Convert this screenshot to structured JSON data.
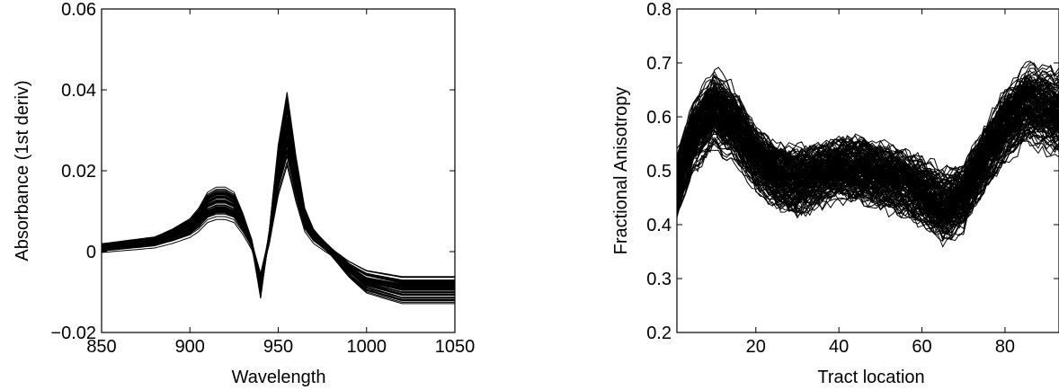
{
  "chart_data": [
    {
      "type": "line",
      "description_of_series": "many overlaid derivative absorbance spectra",
      "xlabel": "Wavelength",
      "ylabel": "Absorbance (1st deriv)",
      "xlim": [
        850,
        1050
      ],
      "ylim": [
        -0.02,
        0.06
      ],
      "xticks": [
        850,
        900,
        950,
        1000,
        1050
      ],
      "xtick_labels": [
        "850",
        "900",
        "950",
        "1000",
        "1050"
      ],
      "yticks": [
        -0.02,
        0,
        0.02,
        0.04,
        0.06
      ],
      "ytick_labels": [
        "−0.02",
        "0",
        "0.02",
        "0.04",
        "0.06"
      ],
      "grid": false,
      "series_count": 60,
      "x": [
        850,
        860,
        870,
        880,
        890,
        900,
        905,
        910,
        915,
        920,
        925,
        930,
        935,
        940,
        945,
        950,
        955,
        960,
        965,
        970,
        980,
        990,
        1000,
        1010,
        1020,
        1030,
        1040,
        1050
      ],
      "mean_curve": [
        0.001,
        0.0015,
        0.002,
        0.0025,
        0.004,
        0.006,
        0.008,
        0.011,
        0.012,
        0.012,
        0.011,
        0.007,
        0.002,
        -0.008,
        0.004,
        0.02,
        0.03,
        0.018,
        0.008,
        0.004,
        0.0,
        -0.004,
        -0.007,
        -0.008,
        -0.009,
        -0.009,
        -0.009,
        -0.009
      ]
    },
    {
      "type": "line",
      "description_of_series": "many overlaid fractional anisotropy tract profiles",
      "xlabel": "Tract location",
      "ylabel": "Fractional Anisotropy",
      "xlim": [
        1,
        93
      ],
      "ylim": [
        0.2,
        0.8
      ],
      "xticks": [
        20,
        40,
        60,
        80
      ],
      "xtick_labels": [
        "20",
        "40",
        "60",
        "80"
      ],
      "yticks": [
        0.2,
        0.3,
        0.4,
        0.5,
        0.6,
        0.7,
        0.8
      ],
      "ytick_labels": [
        "0.2",
        "0.3",
        "0.4",
        "0.5",
        "0.6",
        "0.7",
        "0.8"
      ],
      "grid": false,
      "series_count": 160,
      "x": [
        1,
        5,
        10,
        15,
        20,
        25,
        30,
        35,
        40,
        45,
        50,
        55,
        60,
        65,
        70,
        75,
        80,
        85,
        90,
        93
      ],
      "mean_curve": [
        0.47,
        0.56,
        0.61,
        0.58,
        0.52,
        0.49,
        0.48,
        0.49,
        0.5,
        0.5,
        0.49,
        0.48,
        0.46,
        0.43,
        0.45,
        0.52,
        0.58,
        0.62,
        0.61,
        0.6
      ]
    }
  ]
}
